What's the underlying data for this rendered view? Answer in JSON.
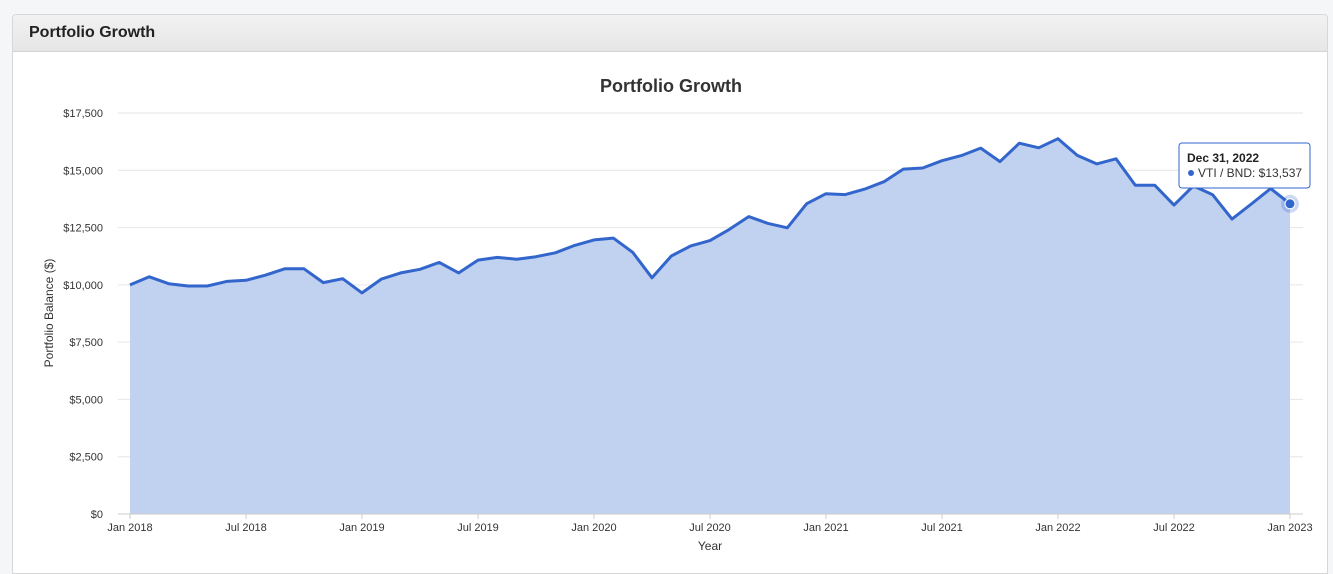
{
  "panel": {
    "title": "Portfolio Growth"
  },
  "colors": {
    "line": "#3366cc",
    "area": "#c1d1f0",
    "grid": "#e6e6e6"
  },
  "tooltip": {
    "date": "Dec 31, 2022",
    "text": "VTI / BND: $13,537",
    "index": 60
  },
  "chart_data": {
    "type": "area",
    "title": "Portfolio Growth",
    "xlabel": "Year",
    "ylabel": "Portfolio Balance ($)",
    "ylim": [
      0,
      17500
    ],
    "yticks": [
      0,
      2500,
      5000,
      7500,
      10000,
      12500,
      15000,
      17500
    ],
    "ytick_labels": [
      "$0",
      "$2,500",
      "$5,000",
      "$7,500",
      "$10,000",
      "$12,500",
      "$15,000",
      "$17,500"
    ],
    "xlim": [
      "Jan 2018",
      "Jan 2023"
    ],
    "xtick_labels": [
      "Jan 2018",
      "Jul 2018",
      "Jan 2019",
      "Jul 2019",
      "Jan 2020",
      "Jul 2020",
      "Jan 2021",
      "Jul 2021",
      "Jan 2022",
      "Jul 2022",
      "Jan 2023"
    ],
    "grid": true,
    "series": [
      {
        "name": "VTI / BND",
        "x": [
          "Jan 2018",
          "Feb 2018",
          "Mar 2018",
          "Apr 2018",
          "May 2018",
          "Jun 2018",
          "Jul 2018",
          "Aug 2018",
          "Sep 2018",
          "Oct 2018",
          "Nov 2018",
          "Dec 2018",
          "Jan 2019",
          "Feb 2019",
          "Mar 2019",
          "Apr 2019",
          "May 2019",
          "Jun 2019",
          "Jul 2019",
          "Aug 2019",
          "Sep 2019",
          "Oct 2019",
          "Nov 2019",
          "Dec 2019",
          "Jan 2020",
          "Feb 2020",
          "Mar 2020",
          "Apr 2020",
          "May 2020",
          "Jun 2020",
          "Jul 2020",
          "Aug 2020",
          "Sep 2020",
          "Oct 2020",
          "Nov 2020",
          "Dec 2020",
          "Jan 2021",
          "Feb 2021",
          "Mar 2021",
          "Apr 2021",
          "May 2021",
          "Jun 2021",
          "Jul 2021",
          "Aug 2021",
          "Sep 2021",
          "Oct 2021",
          "Nov 2021",
          "Dec 2021",
          "Jan 2022",
          "Feb 2022",
          "Mar 2022",
          "Apr 2022",
          "May 2022",
          "Jun 2022",
          "Jul 2022",
          "Aug 2022",
          "Sep 2022",
          "Oct 2022",
          "Nov 2022",
          "Dec 2022",
          "Dec 31, 2022"
        ],
        "values": [
          10000,
          10350,
          10050,
          9950,
          9950,
          10150,
          10200,
          10420,
          10700,
          10700,
          10100,
          10270,
          9650,
          10250,
          10520,
          10680,
          10980,
          10520,
          11080,
          11200,
          11120,
          11230,
          11400,
          11720,
          11960,
          12040,
          11420,
          10310,
          11260,
          11700,
          11930,
          12420,
          12980,
          12680,
          12490,
          13540,
          13980,
          13940,
          14180,
          14500,
          15050,
          15100,
          15420,
          15640,
          15970,
          15380,
          16180,
          15980,
          16380,
          15650,
          15280,
          15500,
          14350,
          14350,
          13480,
          14320,
          13930,
          12870,
          13530,
          14200,
          13537
        ]
      }
    ]
  }
}
